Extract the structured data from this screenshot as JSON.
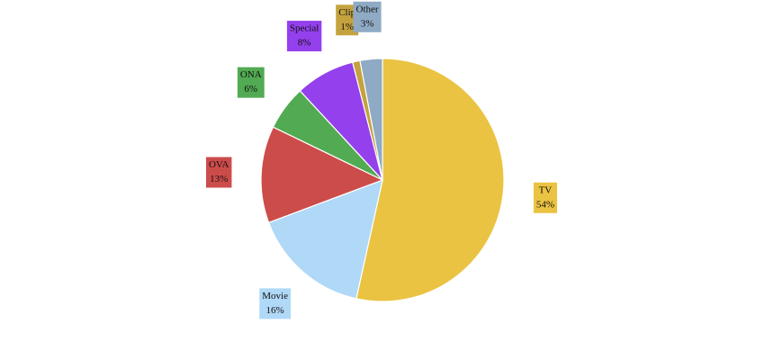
{
  "chart_data": {
    "type": "pie",
    "categories": [
      "TV",
      "Movie",
      "OVA",
      "ONA",
      "Special",
      "Clip",
      "Other"
    ],
    "values": [
      54,
      16,
      13,
      6,
      8,
      1,
      3
    ],
    "value_labels": [
      "54%",
      "16%",
      "13%",
      "6%",
      "8%",
      "1%",
      "3%"
    ],
    "colors": [
      "#ebc342",
      "#b0d8f7",
      "#cc4c4a",
      "#52aa52",
      "#9440ed",
      "#c4a23e",
      "#8faac4"
    ]
  }
}
